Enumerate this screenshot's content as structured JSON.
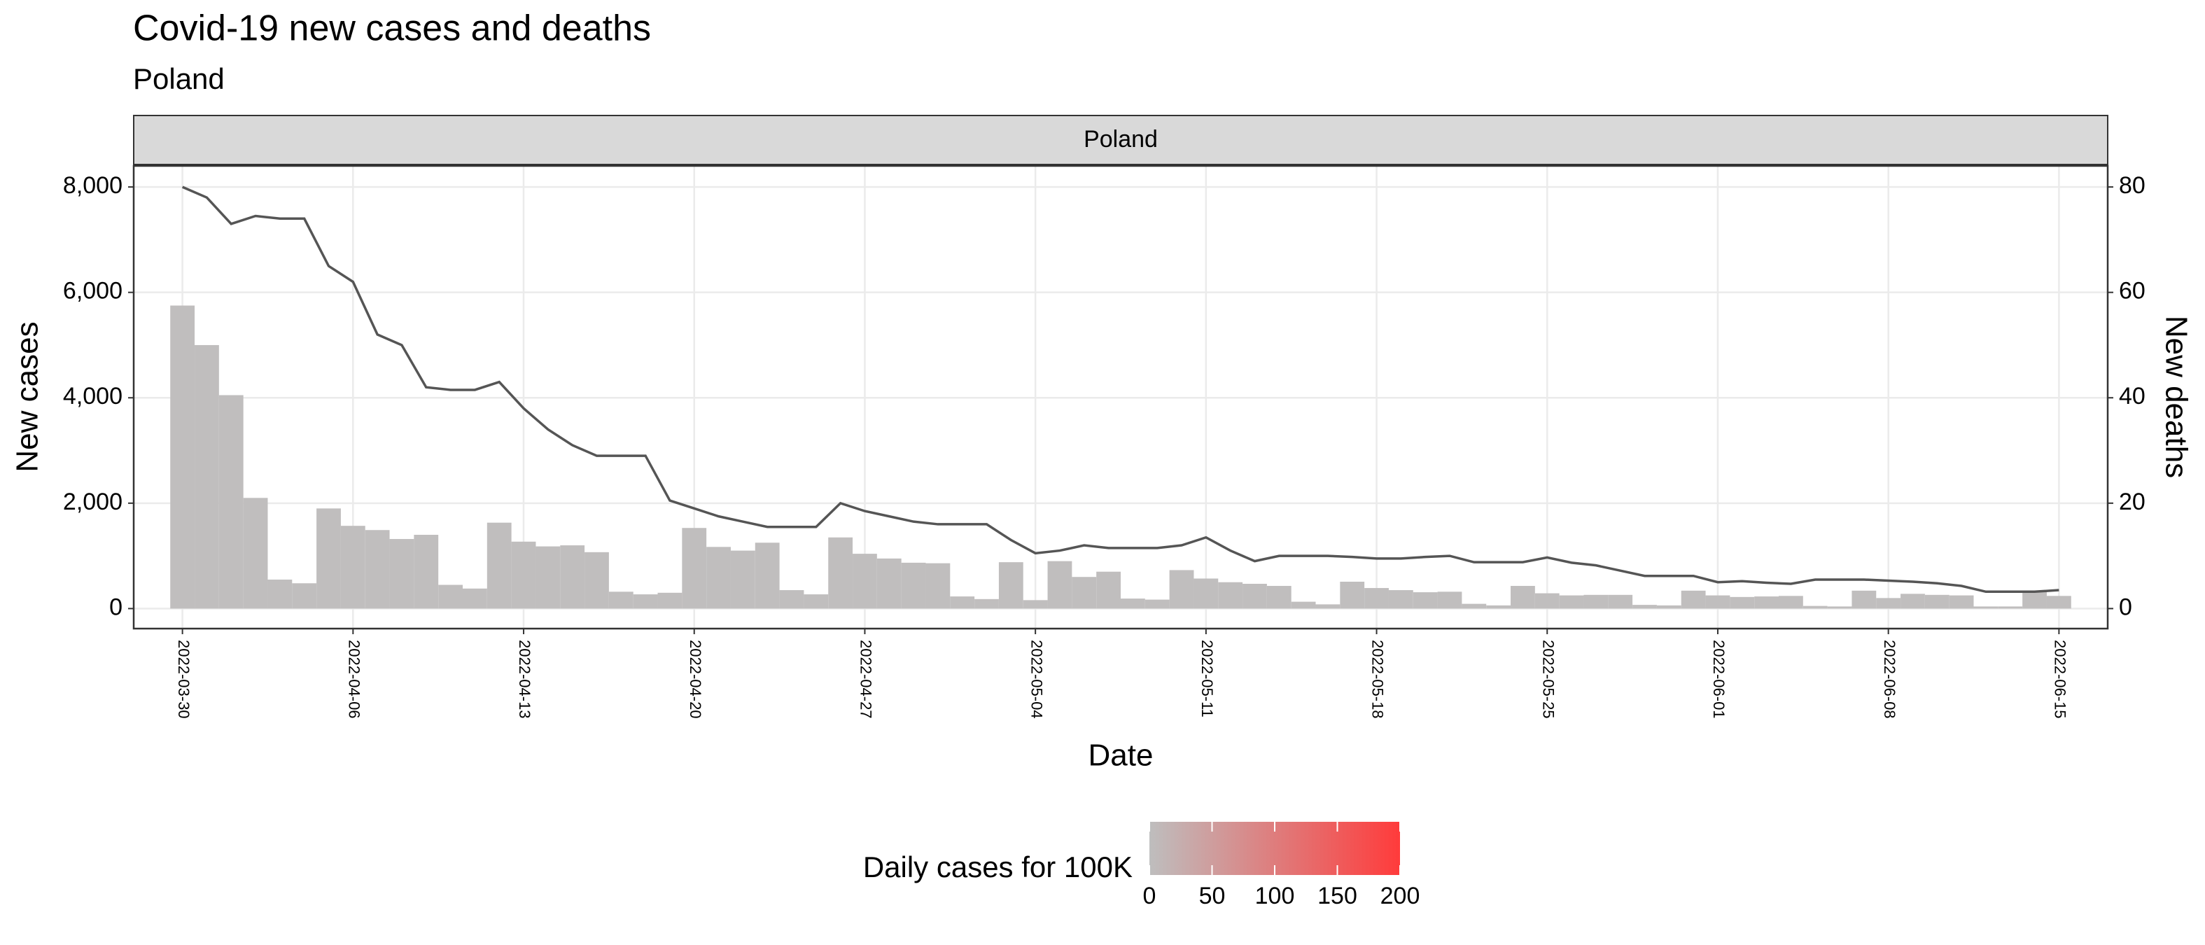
{
  "chart_data": {
    "type": "bar_line",
    "title": "Covid-19 new cases and deaths",
    "subtitle": "Poland",
    "facet": "Poland",
    "xlabel": "Date",
    "ylabel": "New cases",
    "y2label": "New deaths",
    "x": [
      "2022-03-30",
      "2022-03-31",
      "2022-04-01",
      "2022-04-02",
      "2022-04-03",
      "2022-04-04",
      "2022-04-05",
      "2022-04-06",
      "2022-04-07",
      "2022-04-08",
      "2022-04-09",
      "2022-04-10",
      "2022-04-11",
      "2022-04-12",
      "2022-04-13",
      "2022-04-14",
      "2022-04-15",
      "2022-04-16",
      "2022-04-17",
      "2022-04-18",
      "2022-04-19",
      "2022-04-20",
      "2022-04-21",
      "2022-04-22",
      "2022-04-23",
      "2022-04-24",
      "2022-04-25",
      "2022-04-26",
      "2022-04-27",
      "2022-04-28",
      "2022-04-29",
      "2022-04-30",
      "2022-05-01",
      "2022-05-02",
      "2022-05-03",
      "2022-05-04",
      "2022-05-05",
      "2022-05-06",
      "2022-05-07",
      "2022-05-08",
      "2022-05-09",
      "2022-05-10",
      "2022-05-11",
      "2022-05-12",
      "2022-05-13",
      "2022-05-14",
      "2022-05-15",
      "2022-05-16",
      "2022-05-17",
      "2022-05-18",
      "2022-05-19",
      "2022-05-20",
      "2022-05-21",
      "2022-05-22",
      "2022-05-23",
      "2022-05-24",
      "2022-05-25",
      "2022-05-26",
      "2022-05-27",
      "2022-05-28",
      "2022-05-29",
      "2022-05-30",
      "2022-05-31",
      "2022-06-01",
      "2022-06-02",
      "2022-06-03",
      "2022-06-04",
      "2022-06-05",
      "2022-06-06",
      "2022-06-07",
      "2022-06-08",
      "2022-06-09",
      "2022-06-10",
      "2022-06-11",
      "2022-06-12",
      "2022-06-13",
      "2022-06-14",
      "2022-06-15"
    ],
    "series": [
      {
        "name": "New cases",
        "color": "#c0bebe",
        "label_color": "#b22222",
        "values": [
          5750,
          5000,
          4050,
          2100,
          550,
          480,
          1900,
          1570,
          1490,
          1320,
          1400,
          450,
          380,
          1630,
          1270,
          1180,
          1200,
          1070,
          320,
          270,
          300,
          1530,
          1170,
          1100,
          1250,
          350,
          270,
          1350,
          1040,
          950,
          870,
          860,
          230,
          180,
          880,
          160,
          900,
          600,
          700,
          190,
          170,
          730,
          570,
          500,
          470,
          430,
          130,
          80,
          510,
          390,
          350,
          310,
          320,
          90,
          60,
          430,
          290,
          250,
          260,
          260,
          70,
          60,
          340,
          250,
          220,
          230,
          240,
          50,
          40,
          340,
          200,
          280,
          260,
          250,
          40,
          40,
          330,
          240
        ]
      },
      {
        "name": "New deaths",
        "color": "#555555",
        "label_color": "#555555",
        "axis": "y2",
        "values": [
          80,
          78,
          73,
          74.5,
          74,
          74,
          65,
          62,
          52,
          50,
          42,
          41.5,
          41.5,
          43,
          38,
          34,
          31,
          29,
          29,
          29,
          20.5,
          19,
          17.5,
          16.5,
          15.5,
          15.5,
          15.5,
          20,
          18.5,
          17.5,
          16.5,
          16,
          16,
          16,
          13,
          10.5,
          11,
          12,
          11.5,
          11.5,
          11.5,
          12,
          13.5,
          11,
          9,
          10,
          10,
          10,
          9.8,
          9.5,
          9.5,
          9.8,
          10,
          8.8,
          8.8,
          8.8,
          9.7,
          8.7,
          8.2,
          7.2,
          6.2,
          6.2,
          6.2,
          5,
          5.2,
          4.9,
          4.7,
          5.5,
          5.5,
          5.5,
          5.3,
          5.1,
          4.8,
          4.3,
          3.2,
          3.2,
          3.2,
          3.5
        ]
      }
    ],
    "xlim": [
      "2022-03-28",
      "2022-06-17"
    ],
    "xticks": [
      "2022-03-30",
      "2022-04-06",
      "2022-04-13",
      "2022-04-20",
      "2022-04-27",
      "2022-05-04",
      "2022-05-11",
      "2022-05-18",
      "2022-05-25",
      "2022-06-01",
      "2022-06-08",
      "2022-06-15"
    ],
    "ylim": [
      -380,
      8400
    ],
    "yticks": [
      0,
      {
        "value": 2000,
        "label": "2,000"
      },
      {
        "value": 4000,
        "label": "4,000"
      },
      {
        "value": 6000,
        "label": "6,000"
      },
      {
        "value": 8000,
        "label": "8,000"
      }
    ],
    "y2lim": [
      -3.8,
      84
    ],
    "y2ticks": [
      0,
      20,
      40,
      60,
      80
    ],
    "grid": true,
    "legend": {
      "title": "Daily cases for 100K",
      "lim": [
        0,
        200
      ],
      "ticks": [
        0,
        50,
        100,
        150,
        200
      ],
      "colors": [
        "#bebebe",
        "#ff3b3b"
      ]
    }
  }
}
